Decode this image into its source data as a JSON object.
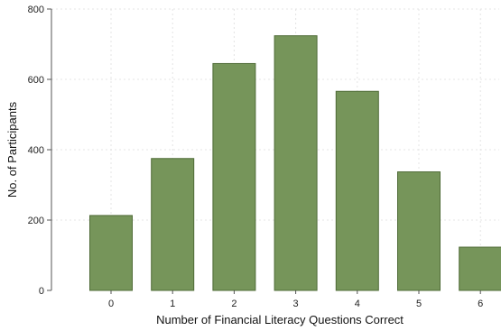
{
  "chart_data": {
    "type": "bar",
    "categories": [
      "0",
      "1",
      "2",
      "3",
      "4",
      "5",
      "6"
    ],
    "values": [
      213,
      375,
      645,
      724,
      566,
      337,
      123
    ],
    "xlabel": "Number of Financial Literacy Questions Correct",
    "ylabel": "No. of Participants",
    "ylim": [
      0,
      800
    ],
    "yticks": [
      0,
      200,
      400,
      600,
      800
    ],
    "grid": true,
    "bar_color": "#76955a",
    "bar_edge_color": "#4f6b37"
  }
}
